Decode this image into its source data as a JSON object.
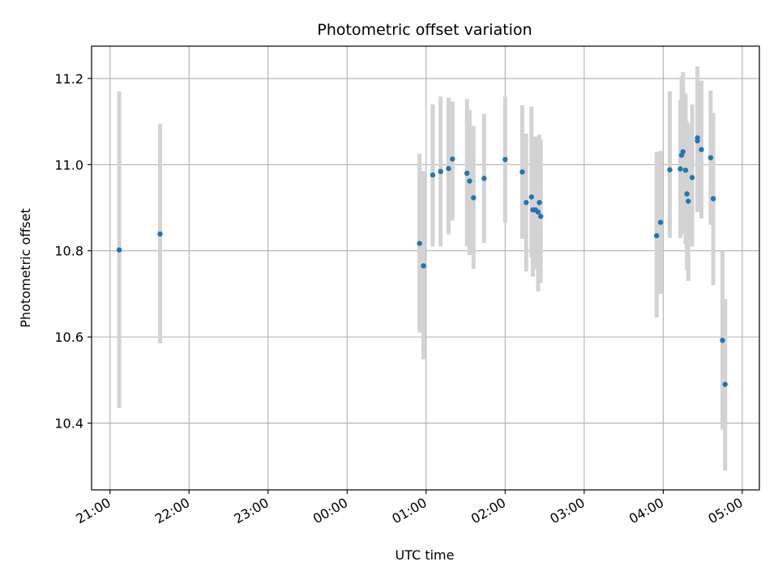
{
  "chart_data": {
    "type": "scatter",
    "title": "Photometric offset variation",
    "xlabel": "UTC time",
    "ylabel": "Photometric offset",
    "grid": true,
    "error_bars": true,
    "x_ticks": [
      "21:00",
      "22:00",
      "23:00",
      "00:00",
      "01:00",
      "02:00",
      "03:00",
      "04:00",
      "05:00"
    ],
    "y_ticks": [
      "10.4",
      "10.6",
      "10.8",
      "11.0",
      "11.2"
    ],
    "xlim": [
      "20:46",
      "05:13"
    ],
    "ylim": [
      10.245,
      11.275
    ],
    "colors": {
      "point": "#1f77b4",
      "errorbar": "#d3d3d3",
      "grid": "#b0b0b0"
    },
    "series": [
      {
        "points": [
          {
            "t": "21:07",
            "y": 10.802,
            "lo": 10.435,
            "hi": 11.17
          },
          {
            "t": "21:38",
            "y": 10.839,
            "lo": 10.585,
            "hi": 11.095
          },
          {
            "t": "00:55",
            "y": 10.817,
            "lo": 10.61,
            "hi": 11.025
          },
          {
            "t": "00:58",
            "y": 10.765,
            "lo": 10.548,
            "hi": 10.985
          },
          {
            "t": "01:05",
            "y": 10.976,
            "lo": 10.81,
            "hi": 11.14
          },
          {
            "t": "01:11",
            "y": 10.984,
            "lo": 10.81,
            "hi": 11.158
          },
          {
            "t": "01:17",
            "y": 10.991,
            "lo": 10.838,
            "hi": 11.155
          },
          {
            "t": "01:20",
            "y": 11.013,
            "lo": 10.87,
            "hi": 11.147
          },
          {
            "t": "01:31",
            "y": 10.98,
            "lo": 10.81,
            "hi": 11.152
          },
          {
            "t": "01:33",
            "y": 10.962,
            "lo": 10.79,
            "hi": 11.127
          },
          {
            "t": "01:36",
            "y": 10.923,
            "lo": 10.758,
            "hi": 11.09
          },
          {
            "t": "01:44",
            "y": 10.968,
            "lo": 10.818,
            "hi": 11.118
          },
          {
            "t": "02:00",
            "y": 11.012,
            "lo": 10.865,
            "hi": 11.158
          },
          {
            "t": "02:13",
            "y": 10.983,
            "lo": 10.828,
            "hi": 11.138
          },
          {
            "t": "02:16",
            "y": 10.912,
            "lo": 10.752,
            "hi": 11.072
          },
          {
            "t": "02:20",
            "y": 10.925,
            "lo": 10.785,
            "hi": 11.135
          },
          {
            "t": "02:21",
            "y": 10.895,
            "lo": 10.74,
            "hi": 11.05
          },
          {
            "t": "02:23",
            "y": 10.895,
            "lo": 10.758,
            "hi": 11.065
          },
          {
            "t": "02:25",
            "y": 10.89,
            "lo": 10.705,
            "hi": 11.065
          },
          {
            "t": "02:26",
            "y": 10.912,
            "lo": 10.76,
            "hi": 11.07
          },
          {
            "t": "02:27",
            "y": 10.88,
            "lo": 10.725,
            "hi": 11.058
          },
          {
            "t": "03:55",
            "y": 10.835,
            "lo": 10.645,
            "hi": 11.03
          },
          {
            "t": "03:58",
            "y": 10.866,
            "lo": 10.7,
            "hi": 11.032
          },
          {
            "t": "04:05",
            "y": 10.988,
            "lo": 10.83,
            "hi": 11.17
          },
          {
            "t": "04:13",
            "y": 10.99,
            "lo": 10.83,
            "hi": 11.15
          },
          {
            "t": "04:14",
            "y": 11.022,
            "lo": 10.85,
            "hi": 11.205
          },
          {
            "t": "04:15",
            "y": 11.03,
            "lo": 10.84,
            "hi": 11.215
          },
          {
            "t": "04:17",
            "y": 10.987,
            "lo": 10.815,
            "hi": 11.165
          },
          {
            "t": "04:18",
            "y": 10.932,
            "lo": 10.755,
            "hi": 11.1
          },
          {
            "t": "04:19",
            "y": 10.915,
            "lo": 10.73,
            "hi": 11.095
          },
          {
            "t": "04:22",
            "y": 10.97,
            "lo": 10.81,
            "hi": 11.14
          },
          {
            "t": "04:26",
            "y": 11.055,
            "lo": 10.89,
            "hi": 11.228
          },
          {
            "t": "04:26",
            "y": 11.062,
            "lo": 10.895,
            "hi": 11.22
          },
          {
            "t": "04:29",
            "y": 11.035,
            "lo": 10.875,
            "hi": 11.195
          },
          {
            "t": "04:36",
            "y": 11.016,
            "lo": 10.86,
            "hi": 11.172
          },
          {
            "t": "04:38",
            "y": 10.921,
            "lo": 10.72,
            "hi": 11.12
          },
          {
            "t": "04:45",
            "y": 10.592,
            "lo": 10.385,
            "hi": 10.8
          },
          {
            "t": "04:47",
            "y": 10.49,
            "lo": 10.29,
            "hi": 10.688
          }
        ]
      }
    ]
  }
}
